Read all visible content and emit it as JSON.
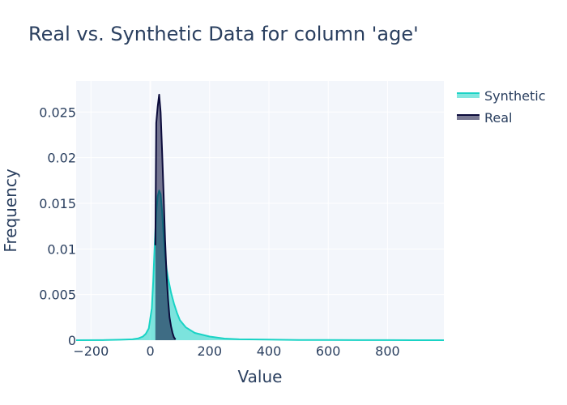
{
  "chart_data": {
    "type": "area",
    "title": "Real vs. Synthetic Data for column 'age'",
    "xlabel": "Value",
    "ylabel": "Frequency",
    "xlim": [
      -250,
      990
    ],
    "ylim": [
      0,
      0.0284
    ],
    "x_ticks": [
      -200,
      0,
      200,
      400,
      600,
      800
    ],
    "x_tick_labels": [
      "−200",
      "0",
      "200",
      "400",
      "600",
      "800"
    ],
    "y_ticks": [
      0,
      0.005,
      0.01,
      0.015,
      0.02,
      0.025
    ],
    "y_tick_labels": [
      "0",
      "0.005",
      "0.01",
      "0.015",
      "0.02",
      "0.025"
    ],
    "grid": true,
    "legend_position": "top-right",
    "series": [
      {
        "name": "Synthetic",
        "line_color": "#19d3c5",
        "fill_color": "rgba(25,211,197,0.55)",
        "x": [
          -250,
          -150,
          -100,
          -60,
          -40,
          -25,
          -15,
          -5,
          5,
          10,
          15,
          20,
          25,
          30,
          35,
          40,
          45,
          50,
          55,
          60,
          70,
          80,
          90,
          100,
          120,
          150,
          200,
          250,
          300,
          400,
          500,
          600,
          700,
          800,
          990
        ],
        "y": [
          0,
          2e-05,
          5e-05,
          0.0001,
          0.0002,
          0.0004,
          0.0007,
          0.0013,
          0.0035,
          0.0065,
          0.0105,
          0.014,
          0.0158,
          0.0164,
          0.016,
          0.014,
          0.0115,
          0.0092,
          0.0078,
          0.0068,
          0.0052,
          0.004,
          0.003,
          0.0022,
          0.0014,
          0.0008,
          0.0004,
          0.00018,
          0.0001,
          6e-05,
          3e-05,
          2e-05,
          1e-05,
          5e-06,
          0
        ]
      },
      {
        "name": "Real",
        "line_color": "#0b0b3b",
        "fill_color": "rgba(11,11,59,0.55)",
        "x": [
          17,
          20,
          25,
          30,
          35,
          40,
          45,
          50,
          55,
          60,
          65,
          70,
          75,
          80,
          85
        ],
        "y": [
          0.0104,
          0.0238,
          0.0256,
          0.0269,
          0.025,
          0.0205,
          0.016,
          0.011,
          0.007,
          0.0045,
          0.0025,
          0.0015,
          0.0008,
          0.0003,
          0.0001
        ]
      }
    ]
  }
}
